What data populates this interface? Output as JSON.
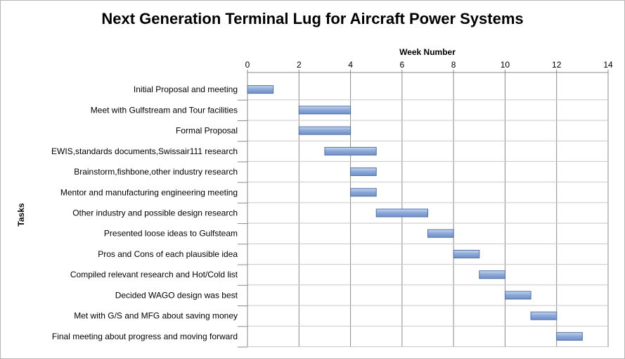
{
  "chart_data": {
    "type": "bar",
    "orientation": "horizontal-gantt",
    "title": "Next Generation Terminal Lug for Aircraft Power Systems",
    "xlabel": "Week Number",
    "ylabel": "Tasks",
    "xlim": [
      0,
      14
    ],
    "xticks": [
      0,
      2,
      4,
      6,
      8,
      10,
      12,
      14
    ],
    "x_axis_position": "top",
    "bar_color": "#8eaad8",
    "bar_edge_color": "#4f6fa8",
    "tasks": [
      {
        "label": "Initial Proposal and meeting",
        "start": 0,
        "end": 1
      },
      {
        "label": "Meet with Gulfstream and Tour facilities",
        "start": 2,
        "end": 4
      },
      {
        "label": "Formal Proposal",
        "start": 2,
        "end": 4
      },
      {
        "label": "EWIS,standards documents,Swissair111 research",
        "start": 3,
        "end": 5
      },
      {
        "label": "Brainstorm,fishbone,other industry research",
        "start": 4,
        "end": 5
      },
      {
        "label": "Mentor and manufacturing engineering meeting",
        "start": 4,
        "end": 5
      },
      {
        "label": "Other industry and possible design research",
        "start": 5,
        "end": 7
      },
      {
        "label": "Presented loose ideas to Gulfsteam",
        "start": 7,
        "end": 8
      },
      {
        "label": "Pros and Cons of each plausible idea",
        "start": 8,
        "end": 9
      },
      {
        "label": "Compiled relevant research and Hot/Cold list",
        "start": 9,
        "end": 10
      },
      {
        "label": "Decided WAGO design was best",
        "start": 10,
        "end": 11
      },
      {
        "label": "Met with G/S and MFG about saving money",
        "start": 11,
        "end": 12
      },
      {
        "label": "Final meeting about progress and moving forward",
        "start": 12,
        "end": 13
      }
    ],
    "grid": "vertical"
  }
}
